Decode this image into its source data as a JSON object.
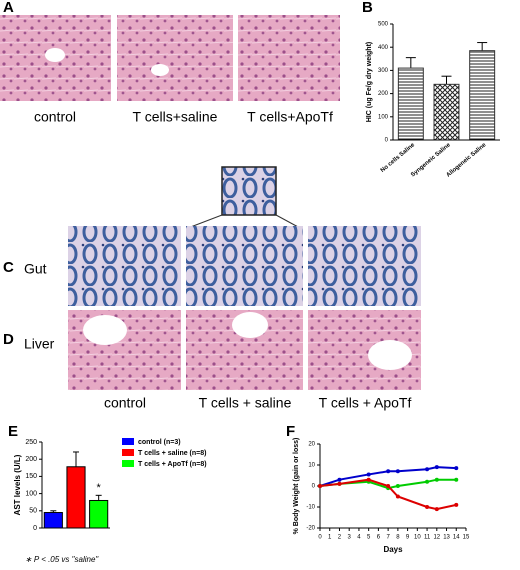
{
  "panels": {
    "A": {
      "label": "A",
      "captions": [
        "control",
        "T cells+saline",
        "T cells+ApoTf"
      ]
    },
    "B": {
      "label": "B"
    },
    "C": {
      "label": "C",
      "row": "Gut"
    },
    "D": {
      "label": "D",
      "row": "Liver",
      "captions": [
        "control",
        "T cells + saline",
        "T cells + ApoTf"
      ]
    },
    "E": {
      "label": "E",
      "footnote": "∗ P < .05 vs \"saline\""
    },
    "F": {
      "label": "F"
    }
  },
  "chart_data": [
    {
      "type": "bar",
      "y_label": "HIC (ug Fe/g dry weight)",
      "categories": [
        "No cells Saline",
        "Syngeneic Saline",
        "Allogeneic Saline"
      ],
      "values": [
        310,
        240,
        385
      ],
      "errors": [
        45,
        35,
        35
      ],
      "color": "#333333",
      "ylim": [
        0,
        500
      ],
      "yticks": [
        0,
        100,
        200,
        300,
        400,
        500
      ]
    },
    {
      "type": "bar",
      "y_label": "AST levels (U/L)",
      "series": [
        {
          "name": "control (n=3)",
          "color": "#0000ff",
          "values": [
            45
          ],
          "errors": [
            5
          ]
        },
        {
          "name": "T cells + saline (n=8)",
          "color": "#ff0000",
          "values": [
            178
          ],
          "errors": [
            43
          ]
        },
        {
          "name": "T cells + ApoTf (n=8)",
          "color": "#00ff00",
          "values": [
            80
          ],
          "errors": [
            15
          ]
        }
      ],
      "annotation": "*",
      "ylim": [
        0,
        250
      ],
      "yticks": [
        0,
        50,
        100,
        150,
        200,
        250
      ]
    },
    {
      "type": "line",
      "x_label": "Days",
      "y_label": "% Body Weight (gain or loss)",
      "x": [
        0,
        2,
        5,
        7,
        8,
        11,
        12,
        14
      ],
      "series": [
        {
          "color": "#0000cc",
          "values": [
            0,
            3,
            5.5,
            7,
            7,
            8,
            9,
            8.5
          ]
        },
        {
          "color": "#00cc00",
          "values": [
            0,
            1,
            2,
            -1,
            0,
            2,
            3,
            3
          ]
        },
        {
          "color": "#dd0000",
          "values": [
            0,
            1,
            3,
            0,
            -5,
            -10,
            -11,
            -9
          ]
        }
      ],
      "xlim": [
        0,
        15
      ],
      "xticks": [
        0,
        1,
        2,
        3,
        4,
        5,
        6,
        7,
        8,
        9,
        10,
        11,
        12,
        13,
        14,
        15
      ],
      "ylim": [
        -20,
        20
      ],
      "yticks": [
        -20,
        -10,
        0,
        10,
        20
      ]
    }
  ]
}
